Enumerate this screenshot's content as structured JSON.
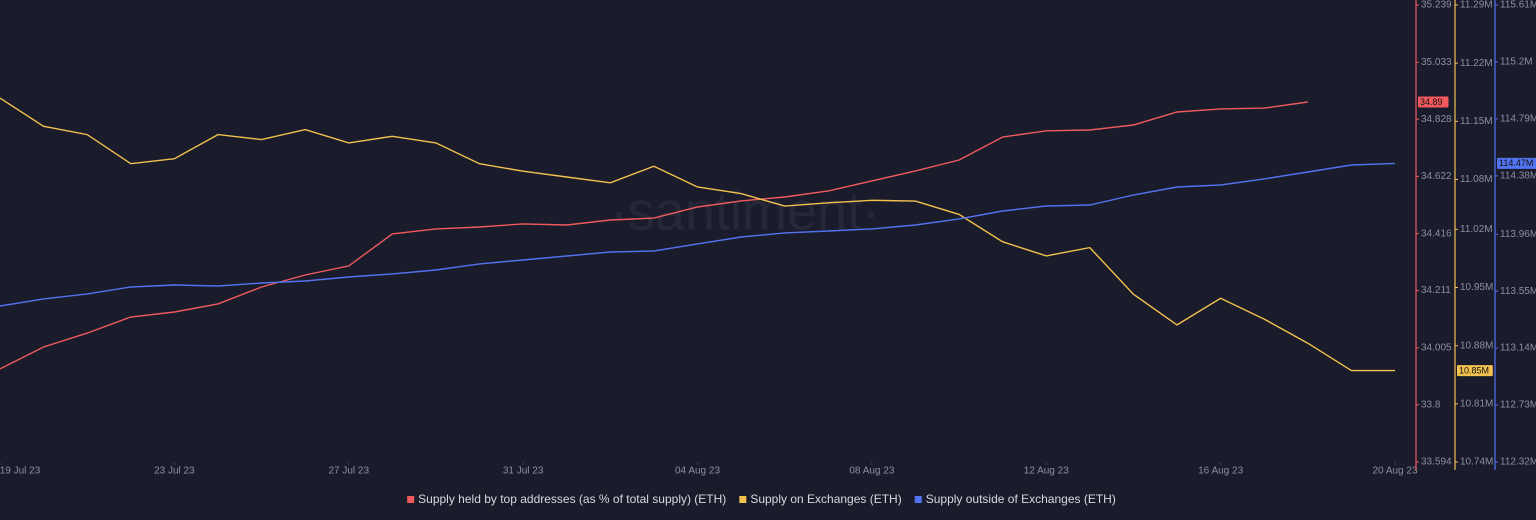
{
  "chart_data": {
    "type": "line",
    "watermark": "·santiment·",
    "x": [
      "2023-07-19",
      "2023-07-20",
      "2023-07-21",
      "2023-07-22",
      "2023-07-23",
      "2023-07-24",
      "2023-07-25",
      "2023-07-26",
      "2023-07-27",
      "2023-07-28",
      "2023-07-29",
      "2023-07-30",
      "2023-07-31",
      "2023-08-01",
      "2023-08-02",
      "2023-08-03",
      "2023-08-04",
      "2023-08-05",
      "2023-08-06",
      "2023-08-07",
      "2023-08-08",
      "2023-08-09",
      "2023-08-10",
      "2023-08-11",
      "2023-08-12",
      "2023-08-13",
      "2023-08-14",
      "2023-08-15",
      "2023-08-16",
      "2023-08-17",
      "2023-08-18",
      "2023-08-19",
      "2023-08-20"
    ],
    "xlim": [
      "2023-07-19",
      "2023-08-20"
    ],
    "xticks": [
      {
        "value": "2023-07-19",
        "label": "19 Jul 23"
      },
      {
        "value": "2023-07-23",
        "label": "23 Jul 23"
      },
      {
        "value": "2023-07-27",
        "label": "27 Jul 23"
      },
      {
        "value": "2023-07-31",
        "label": "31 Jul 23"
      },
      {
        "value": "2023-08-04",
        "label": "04 Aug 23"
      },
      {
        "value": "2023-08-08",
        "label": "08 Aug 23"
      },
      {
        "value": "2023-08-12",
        "label": "12 Aug 23"
      },
      {
        "value": "2023-08-16",
        "label": "16 Aug 23"
      },
      {
        "value": "2023-08-20",
        "label": "20 Aug 23"
      }
    ],
    "ylim": [
      33.594,
      35.239
    ],
    "yticks": [
      33.594,
      33.8,
      34.005,
      34.211,
      34.416,
      34.622,
      34.828,
      35.033,
      35.239
    ],
    "y2lim": [
      10740000,
      11290000
    ],
    "y2ticks": [
      {
        "value": 10740000,
        "label": "10.74M"
      },
      {
        "value": 10810000,
        "label": "10.81M"
      },
      {
        "value": 10880000,
        "label": "10.88M"
      },
      {
        "value": 10950000,
        "label": "10.95M"
      },
      {
        "value": 11020000,
        "label": "11.02M"
      },
      {
        "value": 11080000,
        "label": "11.08M"
      },
      {
        "value": 11150000,
        "label": "11.15M"
      },
      {
        "value": 11220000,
        "label": "11.22M"
      },
      {
        "value": 11290000,
        "label": "11.29M"
      }
    ],
    "y3lim": [
      112320000,
      115610000
    ],
    "y3ticks": [
      {
        "value": 112320000,
        "label": "112.32M"
      },
      {
        "value": 112730000,
        "label": "112.73M"
      },
      {
        "value": 113140000,
        "label": "113.14M"
      },
      {
        "value": 113550000,
        "label": "113.55M"
      },
      {
        "value": 113960000,
        "label": "113.96M"
      },
      {
        "value": 114380000,
        "label": "114.38M"
      },
      {
        "value": 114790000,
        "label": "114.79M"
      },
      {
        "value": 115200000,
        "label": "115.2M"
      },
      {
        "value": 115610000,
        "label": "115.61M"
      }
    ],
    "series": [
      {
        "name": "Supply held by top addresses (as % of total supply) (ETH)",
        "color": "#f05a5e",
        "axis": "y",
        "values": [
          33.929,
          34.008,
          34.058,
          34.116,
          34.134,
          34.163,
          34.224,
          34.267,
          34.3,
          34.415,
          34.433,
          34.44,
          34.451,
          34.447,
          34.465,
          34.472,
          34.512,
          34.534,
          34.548,
          34.57,
          34.606,
          34.642,
          34.681,
          34.764,
          34.786,
          34.789,
          34.807,
          34.854,
          34.865,
          34.868,
          34.89,
          null,
          null
        ]
      },
      {
        "name": "Supply on Exchanges (ETH)",
        "color": "#f2c14e",
        "axis": "y2",
        "values": [
          11178000,
          11144000,
          11134000,
          11099000,
          11105000,
          11134000,
          11128000,
          11140000,
          11124000,
          11132000,
          11124000,
          11099000,
          11090000,
          11083000,
          11076000,
          11096000,
          11071000,
          11063000,
          11048000,
          11052000,
          11055000,
          11054000,
          11038000,
          11005000,
          10988000,
          10998000,
          10942000,
          10905000,
          10937000,
          10912000,
          10883000,
          10850000,
          10850000
        ],
        "value_labels": [
          null,
          null,
          null,
          null,
          null,
          null,
          null,
          null,
          null,
          null,
          null,
          null,
          null,
          null,
          null,
          null,
          null,
          null,
          null,
          null,
          null,
          null,
          null,
          null,
          null,
          null,
          null,
          null,
          null,
          null,
          null,
          null,
          "10.85M"
        ]
      },
      {
        "name": "Supply outside of Exchanges (ETH)",
        "color": "#5173f0",
        "axis": "y3",
        "values": [
          113443000,
          113494000,
          113530000,
          113580000,
          113594000,
          113587000,
          113609000,
          113623000,
          113652000,
          113674000,
          113702000,
          113746000,
          113774000,
          113803000,
          113832000,
          113839000,
          113890000,
          113940000,
          113969000,
          113983000,
          113998000,
          114026000,
          114070000,
          114127000,
          114163000,
          114170000,
          114242000,
          114300000,
          114314000,
          114358000,
          114408000,
          114458000,
          114470000
        ],
        "value_labels": [
          null,
          null,
          null,
          null,
          null,
          null,
          null,
          null,
          null,
          null,
          null,
          null,
          null,
          null,
          null,
          null,
          null,
          null,
          null,
          null,
          null,
          null,
          null,
          null,
          null,
          null,
          null,
          null,
          null,
          null,
          null,
          null,
          "114.47M"
        ]
      }
    ]
  }
}
